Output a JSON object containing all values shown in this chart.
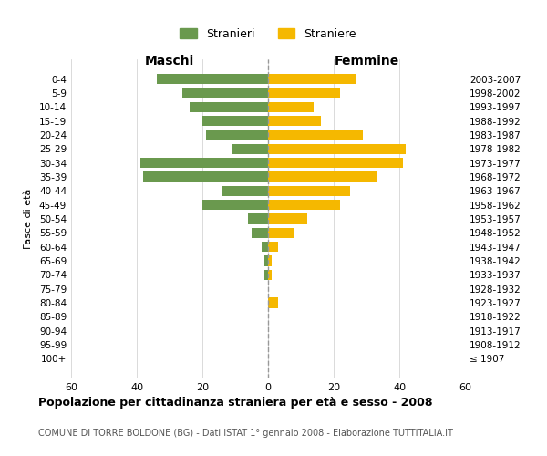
{
  "age_groups": [
    "100+",
    "95-99",
    "90-94",
    "85-89",
    "80-84",
    "75-79",
    "70-74",
    "65-69",
    "60-64",
    "55-59",
    "50-54",
    "45-49",
    "40-44",
    "35-39",
    "30-34",
    "25-29",
    "20-24",
    "15-19",
    "10-14",
    "5-9",
    "0-4"
  ],
  "birth_years": [
    "≤ 1907",
    "1908-1912",
    "1913-1917",
    "1918-1922",
    "1923-1927",
    "1928-1932",
    "1933-1937",
    "1938-1942",
    "1943-1947",
    "1948-1952",
    "1953-1957",
    "1958-1962",
    "1963-1967",
    "1968-1972",
    "1973-1977",
    "1978-1982",
    "1983-1987",
    "1988-1992",
    "1993-1997",
    "1998-2002",
    "2003-2007"
  ],
  "males": [
    0,
    0,
    0,
    0,
    0,
    0,
    1,
    1,
    2,
    5,
    6,
    20,
    14,
    38,
    39,
    11,
    19,
    20,
    24,
    26,
    34
  ],
  "females": [
    0,
    0,
    0,
    0,
    3,
    0,
    1,
    1,
    3,
    8,
    12,
    22,
    25,
    33,
    41,
    42,
    29,
    16,
    14,
    22,
    27
  ],
  "male_color": "#6a994e",
  "female_color": "#f5b800",
  "background_color": "#ffffff",
  "grid_color": "#cccccc",
  "center_line_color": "#999999",
  "xlim": 60,
  "title_main": "Popolazione per cittadinanza straniera per età e sesso - 2008",
  "title_sub": "COMUNE DI TORRE BOLDONE (BG) - Dati ISTAT 1° gennaio 2008 - Elaborazione TUTTITALIA.IT",
  "ylabel_left": "Fasce di età",
  "xlabel_left": "Maschi",
  "xlabel_right": "Femmine",
  "legend_male": "Stranieri",
  "legend_female": "Straniere"
}
